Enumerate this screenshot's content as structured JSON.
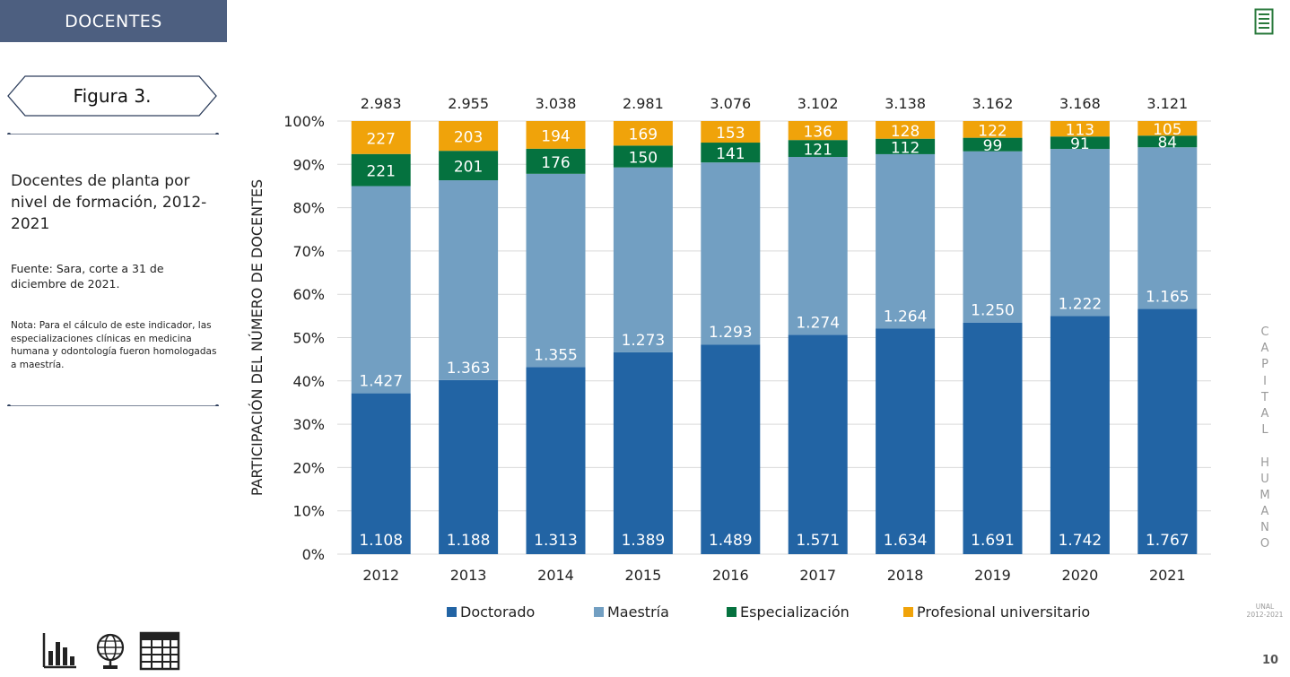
{
  "header": {
    "section_title": "DOCENTES"
  },
  "figure": {
    "tag": "Figura 3.",
    "title": "Docentes de planta por nivel de formación, 2012-2021",
    "source": "Fuente: Sara, corte a 31 de diciembre de 2021.",
    "note": "Nota: Para el cálculo de este indicador, las especializaciones clínicas en medicina humana y odontología fueron homologadas a maestría."
  },
  "side_text": {
    "letters": [
      "C",
      "A",
      "P",
      "I",
      "T",
      "A",
      "L",
      "",
      "H",
      "U",
      "M",
      "A",
      "N",
      "O"
    ],
    "unal": "UNAL",
    "years": "2012-2021"
  },
  "page_number": "10",
  "icons": [
    "document-icon",
    "bar-chart-icon",
    "globe-icon",
    "table-icon"
  ],
  "colors": {
    "header": "#4d5f80",
    "doctorado": "#2264a4",
    "maestria": "#729fc2",
    "especializacion": "#05723f",
    "profesional": "#f0a30a"
  },
  "chart_data": {
    "type": "bar",
    "stacked": true,
    "normalized": true,
    "categories": [
      "2012",
      "2013",
      "2014",
      "2015",
      "2016",
      "2017",
      "2018",
      "2019",
      "2020",
      "2021"
    ],
    "series": [
      {
        "name": "Doctorado",
        "color": "#2264a4",
        "values": [
          1108,
          1188,
          1313,
          1389,
          1489,
          1571,
          1634,
          1691,
          1742,
          1767
        ],
        "labels": [
          "1.108",
          "1.188",
          "1.313",
          "1.389",
          "1.489",
          "1.571",
          "1.634",
          "1.691",
          "1.742",
          "1.767"
        ]
      },
      {
        "name": "Maestría",
        "color": "#729fc2",
        "values": [
          1427,
          1363,
          1355,
          1273,
          1293,
          1274,
          1264,
          1250,
          1222,
          1165
        ],
        "labels": [
          "1.427",
          "1.363",
          "1.355",
          "1.273",
          "1.293",
          "1.274",
          "1.264",
          "1.250",
          "1.222",
          "1.165"
        ]
      },
      {
        "name": "Especialización",
        "color": "#05723f",
        "values": [
          221,
          201,
          176,
          150,
          141,
          121,
          112,
          99,
          91,
          84
        ],
        "labels": [
          "221",
          "201",
          "176",
          "150",
          "141",
          "121",
          "112",
          "99",
          "91",
          "84"
        ]
      },
      {
        "name": "Profesional universitario",
        "color": "#f0a30a",
        "values": [
          227,
          203,
          194,
          169,
          153,
          136,
          128,
          122,
          113,
          105
        ],
        "labels": [
          "227",
          "203",
          "194",
          "169",
          "153",
          "136",
          "128",
          "122",
          "113",
          "105"
        ]
      }
    ],
    "totals": [
      "2.983",
      "2.955",
      "3.038",
      "2.981",
      "3.076",
      "3.102",
      "3.138",
      "3.162",
      "3.168",
      "3.121"
    ],
    "ylabel": "PARTICIPACIÓN DEL NÚMERO DE DOCENTES",
    "yticks": [
      "0%",
      "10%",
      "20%",
      "30%",
      "40%",
      "50%",
      "60%",
      "70%",
      "80%",
      "90%",
      "100%"
    ],
    "ylim": [
      0,
      100
    ],
    "grid": true,
    "legend_position": "bottom"
  }
}
